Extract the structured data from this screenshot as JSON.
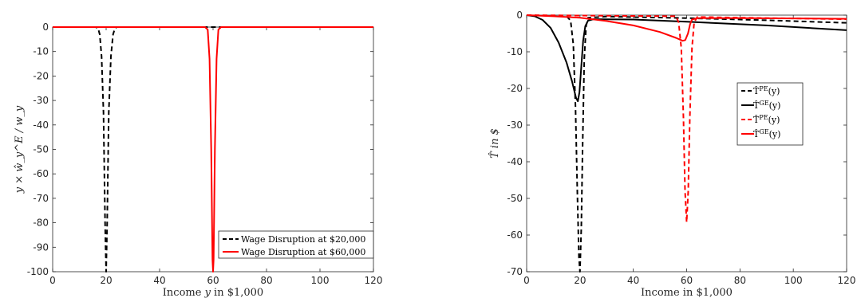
{
  "chart_data": [
    {
      "type": "line",
      "title": "",
      "xlabel": "Income y in $1,000",
      "ylabel": "y × ŵ_y^E / w_y",
      "xlim": [
        0,
        120
      ],
      "ylim": [
        -100,
        0
      ],
      "xticks": [
        0,
        20,
        40,
        60,
        80,
        100,
        120
      ],
      "yticks": [
        0,
        -10,
        -20,
        -30,
        -40,
        -50,
        -60,
        -70,
        -80,
        -90,
        -100
      ],
      "grid": false,
      "legend_position": "bottom-right",
      "series": [
        {
          "name": "Wage Disruption at $20,000",
          "color": "#000000",
          "dash": "dashed",
          "points": [
            [
              0,
              0
            ],
            [
              16,
              0
            ],
            [
              17,
              -0.5
            ],
            [
              17.6,
              -3
            ],
            [
              18.3,
              -12
            ],
            [
              19,
              -35
            ],
            [
              19.6,
              -80
            ],
            [
              20,
              -100
            ],
            [
              20.4,
              -80
            ],
            [
              21,
              -35
            ],
            [
              21.8,
              -12
            ],
            [
              22.6,
              -3
            ],
            [
              23.3,
              -0.5
            ],
            [
              24,
              0
            ],
            [
              120,
              0
            ]
          ]
        },
        {
          "name": "Wage Disruption at $60,000",
          "color": "#ff0000",
          "dash": "solid",
          "points": [
            [
              0,
              0
            ],
            [
              57,
              0
            ],
            [
              58,
              -1
            ],
            [
              58.7,
              -13
            ],
            [
              59.3,
              -50
            ],
            [
              59.8,
              -95
            ],
            [
              60,
              -100
            ],
            [
              60.2,
              -95
            ],
            [
              60.7,
              -50
            ],
            [
              61.3,
              -13
            ],
            [
              62,
              -1
            ],
            [
              63,
              0
            ],
            [
              120,
              0
            ]
          ]
        }
      ]
    },
    {
      "type": "line",
      "title": "",
      "xlabel": "Income in $1,000",
      "ylabel": "T̂ in $",
      "xlim": [
        0,
        120
      ],
      "ylim": [
        -70,
        0
      ],
      "xticks": [
        0,
        20,
        40,
        60,
        80,
        100,
        120
      ],
      "yticks": [
        0,
        -10,
        -20,
        -30,
        -40,
        -50,
        -60,
        -70
      ],
      "grid": false,
      "legend_position": "center-right",
      "series": [
        {
          "name": "T̂^PE(y)",
          "color": "#000000",
          "dash": "dashed",
          "points": [
            [
              0,
              0
            ],
            [
              15,
              -0.3
            ],
            [
              16.5,
              -1.5
            ],
            [
              17.5,
              -8
            ],
            [
              18.3,
              -25
            ],
            [
              19,
              -48
            ],
            [
              19.6,
              -66
            ],
            [
              20,
              -70
            ],
            [
              20.5,
              -58
            ],
            [
              21,
              -35
            ],
            [
              21.6,
              -12
            ],
            [
              22.3,
              -3
            ],
            [
              23,
              -0.7
            ],
            [
              30,
              -0.4
            ],
            [
              60,
              -0.8
            ],
            [
              90,
              -1.4
            ],
            [
              120,
              -2.1
            ]
          ]
        },
        {
          "name": "T̂^GE(y)",
          "color": "#000000",
          "dash": "solid",
          "points": [
            [
              0,
              0
            ],
            [
              3,
              -0.3
            ],
            [
              6,
              -1.3
            ],
            [
              9,
              -3.5
            ],
            [
              12,
              -7.5
            ],
            [
              15,
              -13
            ],
            [
              17,
              -18
            ],
            [
              18.5,
              -22.5
            ],
            [
              19.2,
              -23.5
            ],
            [
              19.8,
              -21
            ],
            [
              20.5,
              -14
            ],
            [
              21.2,
              -7
            ],
            [
              22,
              -3
            ],
            [
              23,
              -1.5
            ],
            [
              25,
              -1.1
            ],
            [
              40,
              -1.2
            ],
            [
              60,
              -1.8
            ],
            [
              90,
              -2.8
            ],
            [
              120,
              -4.1
            ]
          ]
        },
        {
          "name": "T̂^PE(y)",
          "color": "#ff0000",
          "dash": "dashed",
          "points": [
            [
              0,
              0
            ],
            [
              56,
              -0.3
            ],
            [
              57,
              -2
            ],
            [
              58,
              -9
            ],
            [
              58.8,
              -28
            ],
            [
              59.4,
              -48
            ],
            [
              60,
              -56.5
            ],
            [
              60.6,
              -48
            ],
            [
              61.2,
              -28
            ],
            [
              62,
              -9
            ],
            [
              62.8,
              -2
            ],
            [
              64,
              -0.5
            ],
            [
              80,
              -0.7
            ],
            [
              100,
              -0.9
            ],
            [
              120,
              -1.1
            ]
          ]
        },
        {
          "name": "T̂^GE(y)",
          "color": "#ff0000",
          "dash": "solid",
          "points": [
            [
              0,
              0
            ],
            [
              10,
              -0.3
            ],
            [
              20,
              -0.7
            ],
            [
              30,
              -1.6
            ],
            [
              40,
              -2.8
            ],
            [
              50,
              -4.6
            ],
            [
              56,
              -6.2
            ],
            [
              58.5,
              -7
            ],
            [
              59.5,
              -6.8
            ],
            [
              60.5,
              -5
            ],
            [
              61.3,
              -2.5
            ],
            [
              62,
              -1.2
            ],
            [
              64,
              -0.8
            ],
            [
              80,
              -0.8
            ],
            [
              100,
              -0.9
            ],
            [
              120,
              -1.0
            ]
          ]
        }
      ]
    }
  ]
}
